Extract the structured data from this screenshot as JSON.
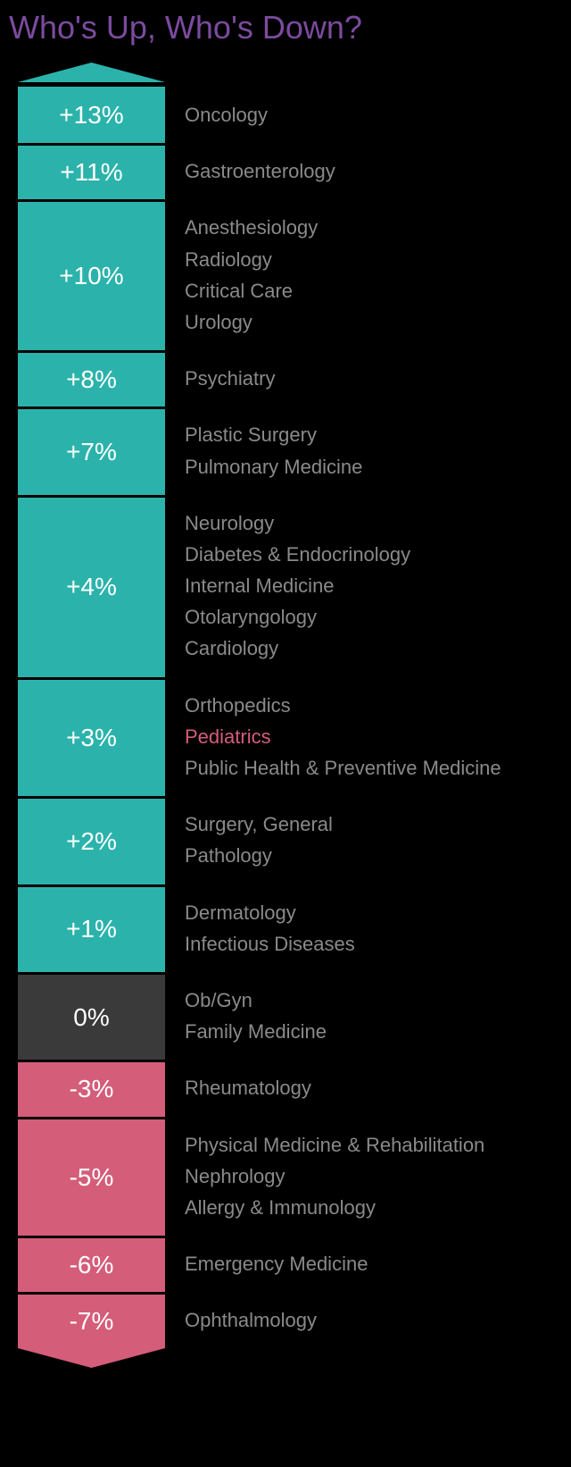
{
  "title": "Who's Up, Who's Down?",
  "title_color": "#7b4b9e",
  "colors": {
    "positive": "#2bb3ab",
    "neutral": "#3a3a3a",
    "negative": "#d45d7a",
    "highlight_label": "#d45d7a",
    "label_default": "#8a8a8a",
    "pct_text": "#ffffff",
    "background": "#000000",
    "divider": "#000000"
  },
  "typography": {
    "title_fontsize": 36,
    "pct_fontsize": 28,
    "label_fontsize": 22
  },
  "layout": {
    "pct_col_width": 165,
    "row_divider_width": 3
  },
  "rows": [
    {
      "pct": "+13%",
      "band": "positive",
      "labels": [
        {
          "text": "Oncology"
        }
      ]
    },
    {
      "pct": "+11%",
      "band": "positive",
      "labels": [
        {
          "text": "Gastroenterology"
        }
      ]
    },
    {
      "pct": "+10%",
      "band": "positive",
      "labels": [
        {
          "text": "Anesthesiology"
        },
        {
          "text": "Radiology"
        },
        {
          "text": "Critical Care"
        },
        {
          "text": "Urology"
        }
      ]
    },
    {
      "pct": "+8%",
      "band": "positive",
      "labels": [
        {
          "text": "Psychiatry"
        }
      ]
    },
    {
      "pct": "+7%",
      "band": "positive",
      "labels": [
        {
          "text": "Plastic Surgery"
        },
        {
          "text": "Pulmonary Medicine"
        }
      ]
    },
    {
      "pct": "+4%",
      "band": "positive",
      "labels": [
        {
          "text": "Neurology"
        },
        {
          "text": "Diabetes & Endocrinology"
        },
        {
          "text": "Internal Medicine"
        },
        {
          "text": "Otolaryngology"
        },
        {
          "text": "Cardiology"
        }
      ]
    },
    {
      "pct": "+3%",
      "band": "positive",
      "labels": [
        {
          "text": "Orthopedics"
        },
        {
          "text": "Pediatrics",
          "highlight": true
        },
        {
          "text": "Public Health & Preventive Medicine"
        }
      ]
    },
    {
      "pct": "+2%",
      "band": "positive",
      "labels": [
        {
          "text": "Surgery, General"
        },
        {
          "text": "Pathology"
        }
      ]
    },
    {
      "pct": "+1%",
      "band": "positive",
      "labels": [
        {
          "text": "Dermatology"
        },
        {
          "text": "Infectious Diseases"
        }
      ]
    },
    {
      "pct": "0%",
      "band": "neutral",
      "labels": [
        {
          "text": "Ob/Gyn"
        },
        {
          "text": "Family Medicine"
        }
      ]
    },
    {
      "pct": "-3%",
      "band": "negative",
      "labels": [
        {
          "text": "Rheumatology"
        }
      ]
    },
    {
      "pct": "-5%",
      "band": "negative",
      "labels": [
        {
          "text": "Physical Medicine & Rehabilitation"
        },
        {
          "text": "Nephrology"
        },
        {
          "text": "Allergy & Immunology"
        }
      ]
    },
    {
      "pct": "-6%",
      "band": "negative",
      "labels": [
        {
          "text": "Emergency Medicine"
        }
      ]
    },
    {
      "pct": "-7%",
      "band": "negative",
      "labels": [
        {
          "text": "Ophthalmology"
        }
      ]
    }
  ]
}
